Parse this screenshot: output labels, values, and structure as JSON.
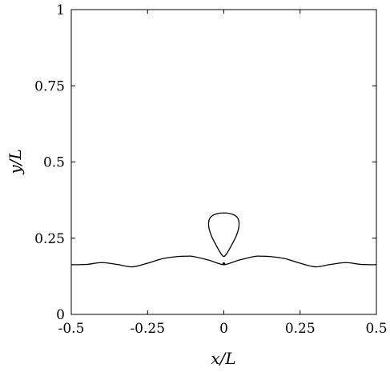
{
  "chart_data": {
    "type": "line",
    "title": "",
    "xlabel": "x/L",
    "ylabel": "y/L",
    "xlim": [
      -0.5,
      0.5
    ],
    "ylim": [
      0,
      1
    ],
    "xticks": [
      -0.5,
      -0.25,
      0,
      0.25,
      0.5
    ],
    "xtick_labels": [
      "-0.5",
      "-0.25",
      "0",
      "0.25",
      "0.5"
    ],
    "yticks": [
      0,
      0.25,
      0.5,
      0.75,
      1
    ],
    "ytick_labels": [
      "0",
      "0.25",
      "0.5",
      "0.75",
      "1"
    ],
    "grid": false,
    "series": [
      {
        "x": [
          -0.5,
          -0.45,
          -0.4,
          -0.35,
          -0.3,
          -0.25,
          -0.2,
          -0.15,
          -0.12,
          -0.1,
          -0.05,
          -0.02,
          0,
          0.02,
          0.05,
          0.1,
          0.12,
          0.15,
          0.2,
          0.25,
          0.3,
          0.35,
          0.4,
          0.45,
          0.5
        ],
        "y": [
          0.163,
          0.164,
          0.17,
          0.164,
          0.156,
          0.168,
          0.183,
          0.19,
          0.191,
          0.19,
          0.178,
          0.168,
          0.163,
          0.168,
          0.178,
          0.19,
          0.191,
          0.19,
          0.183,
          0.168,
          0.156,
          0.164,
          0.17,
          0.164,
          0.163
        ]
      },
      {
        "x": [
          0,
          0.007,
          0.016,
          0.028,
          0.04,
          0.048,
          0.05,
          0.046,
          0.036,
          0.02,
          0,
          -0.02,
          -0.036,
          -0.046,
          -0.05,
          -0.048,
          -0.04,
          -0.028,
          -0.016,
          -0.007,
          0
        ],
        "y": [
          0.19,
          0.196,
          0.21,
          0.232,
          0.256,
          0.28,
          0.3,
          0.315,
          0.325,
          0.331,
          0.333,
          0.331,
          0.325,
          0.315,
          0.3,
          0.28,
          0.256,
          0.232,
          0.21,
          0.196,
          0.19
        ]
      }
    ],
    "markers": [
      {
        "x": 0,
        "y": 0.166
      }
    ]
  }
}
